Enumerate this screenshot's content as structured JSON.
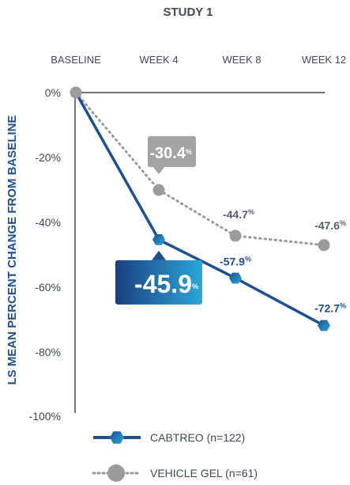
{
  "chart_data": {
    "type": "line",
    "title": "STUDY 1",
    "ylabel": "LS MEAN PERCENT CHANGE FROM BASELINE",
    "categories": [
      "BASELINE",
      "WEEK 4",
      "WEEK 8",
      "WEEK 12"
    ],
    "yticks": [
      "0%",
      "-20%",
      "-40%",
      "-60%",
      "-80%",
      "-100%"
    ],
    "ylim": [
      -100,
      0
    ],
    "series": [
      {
        "name": "CABTREO (n=122)",
        "color": "#1d4f91",
        "marker": "hexagon",
        "line": "solid",
        "values": [
          0,
          -45.9,
          -57.9,
          -72.7
        ],
        "labels": [
          "",
          "-45.9%",
          "-57.9%",
          "-72.7%"
        ]
      },
      {
        "name": "VEHICLE GEL (n=61)",
        "color": "#9b9b9b",
        "marker": "circle",
        "line": "dotted",
        "values": [
          0,
          -30.4,
          -44.7,
          -47.6
        ],
        "labels": [
          "",
          "-30.4%",
          "-44.7%",
          "-47.6%"
        ]
      }
    ],
    "grid": false,
    "legend_position": "bottom"
  }
}
